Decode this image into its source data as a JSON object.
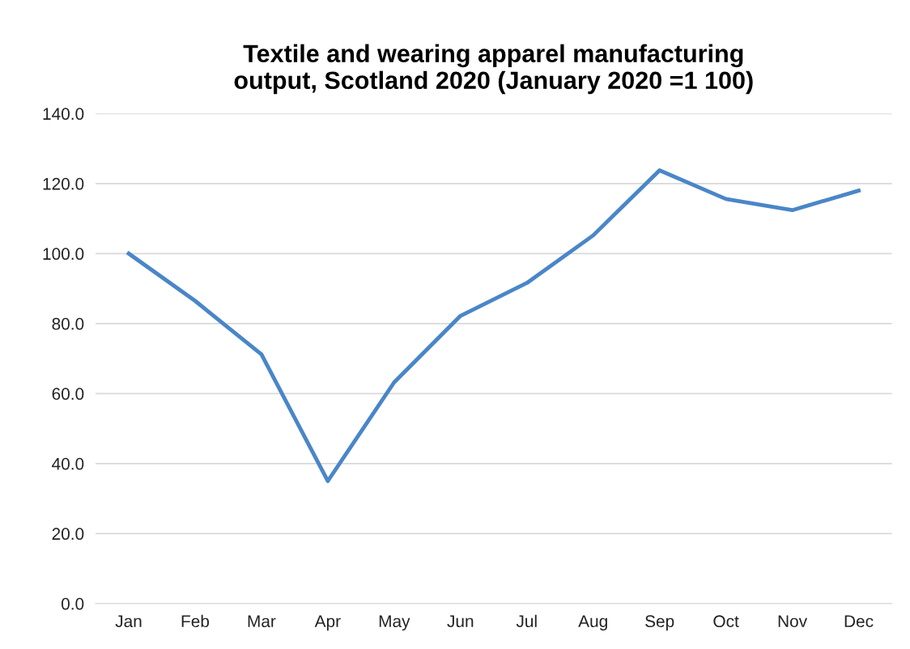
{
  "chart_data": {
    "type": "line",
    "title": "Textile and wearing apparel manufacturing\noutput, Scotland 2020 (January 2020 =1 100)",
    "categories": [
      "Jan",
      "Feb",
      "Mar",
      "Apr",
      "May",
      "Jun",
      "Jul",
      "Aug",
      "Sep",
      "Oct",
      "Nov",
      "Dec"
    ],
    "series": [
      {
        "color": "#4a86c8",
        "values": [
          100.0,
          86.5,
          71.2,
          35.0,
          63.2,
          82.2,
          91.6,
          105.2,
          123.8,
          115.6,
          112.4,
          118.0
        ]
      }
    ],
    "ylim": [
      0,
      140
    ],
    "yticks": [
      {
        "value": 0,
        "label": "0.0"
      },
      {
        "value": 20,
        "label": "20.0"
      },
      {
        "value": 40,
        "label": "40.0"
      },
      {
        "value": 60,
        "label": "60.0"
      },
      {
        "value": 80,
        "label": "80.0"
      },
      {
        "value": 100,
        "label": "100.0"
      },
      {
        "value": 120,
        "label": "120.0"
      },
      {
        "value": 140,
        "label": "140.0"
      }
    ],
    "grid": "y",
    "marker": "none",
    "line_style": "solid"
  }
}
